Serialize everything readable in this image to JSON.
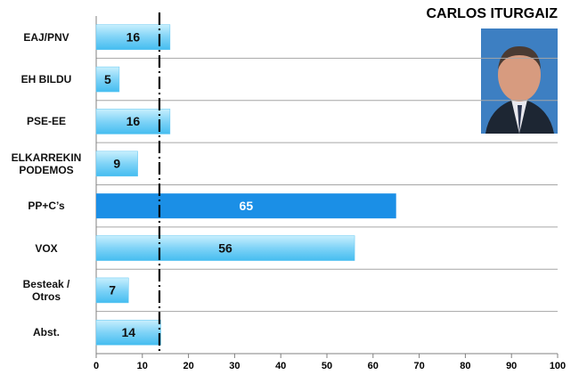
{
  "chart_data": {
    "type": "hbar",
    "title": "CARLOS ITURGAIZ",
    "categories": [
      "EAJ/PNV",
      "EH BILDU",
      "PSE-EE",
      "ELKARREKIN\nPODEMOS",
      "PP+C’s",
      "VOX",
      "Besteak /\nOtros",
      "Abst."
    ],
    "values": [
      16,
      5,
      16,
      9,
      65,
      56,
      7,
      14
    ],
    "colors": [
      "#7fd3f7",
      "#7fd3f7",
      "#7fd3f7",
      "#7fd3f7",
      "#1b8fe6",
      "#7fd3f7",
      "#7fd3f7",
      "#7fd3f7"
    ],
    "xlim": [
      0,
      100
    ],
    "xticks": [
      0,
      10,
      20,
      30,
      40,
      50,
      60,
      70,
      80,
      90,
      100
    ],
    "reference_line": 13.7,
    "grid": true
  }
}
